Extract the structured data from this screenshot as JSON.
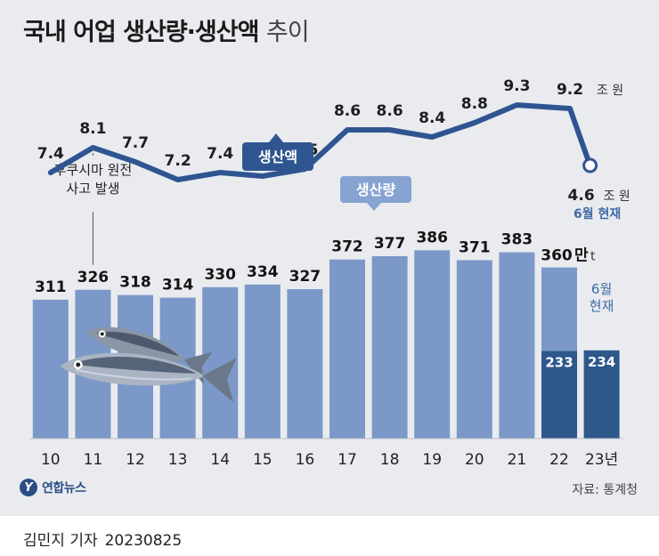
{
  "title": {
    "main": "국내 어업 생산량·생산액",
    "sub": "추이"
  },
  "chart_data": {
    "type": "bar+line",
    "categories": [
      "10",
      "11",
      "12",
      "13",
      "14",
      "15",
      "16",
      "17",
      "18",
      "19",
      "20",
      "21",
      "22",
      "23년"
    ],
    "series": [
      {
        "name": "생산액",
        "type": "line",
        "unit": "조 원",
        "values": [
          7.4,
          8.1,
          7.7,
          7.2,
          7.4,
          7.3,
          7.5,
          8.6,
          8.6,
          8.4,
          8.8,
          9.3,
          9.2,
          4.6
        ],
        "labels": [
          "7.4",
          "8.1",
          "7.7",
          "7.2",
          "7.4",
          "7.3",
          "7.5",
          "8.6",
          "8.6",
          "8.4",
          "8.8",
          "9.3",
          "9.2",
          "4.6"
        ]
      },
      {
        "name": "생산량",
        "type": "bar",
        "unit": "만t",
        "values": [
          311,
          326,
          318,
          314,
          330,
          334,
          327,
          372,
          377,
          386,
          371,
          383,
          360,
          null
        ],
        "labels": [
          "311",
          "326",
          "318",
          "314",
          "330",
          "334",
          "327",
          "372",
          "377",
          "386",
          "371",
          "383",
          "360",
          ""
        ]
      },
      {
        "name": "6월 현재",
        "type": "bar",
        "unit": "만t",
        "values": [
          null,
          null,
          null,
          null,
          null,
          null,
          null,
          null,
          null,
          null,
          null,
          null,
          233,
          234
        ],
        "labels": [
          "",
          "",
          "",
          "",
          "",
          "",
          "",
          "",
          "",
          "",
          "",
          "",
          "233",
          "234"
        ]
      }
    ],
    "units": {
      "value": "조 원",
      "volume": "만t",
      "volume_suffix": "t",
      "volume_unit_word": "만"
    },
    "annotations": {
      "fukushima": [
        "후쿠시마 원전",
        "사고 발생"
      ],
      "june_note_line": "6월 현재",
      "june_note_bar": [
        "6월",
        "현재"
      ],
      "line_badge": "생산액",
      "bar_badge": "생산량"
    },
    "colors": {
      "line": "#2f5591",
      "bar": "#7b98c8",
      "bar_partial": "#2e578c",
      "badge_line": "#2f5591",
      "badge_bar": "#86a3d1",
      "background": "#e9ebef"
    }
  },
  "source": "자료: 통계청",
  "logo": {
    "mark": "Y",
    "text": "연합뉴스"
  },
  "credit": {
    "author": "김민지 기자",
    "date": "20230825"
  }
}
